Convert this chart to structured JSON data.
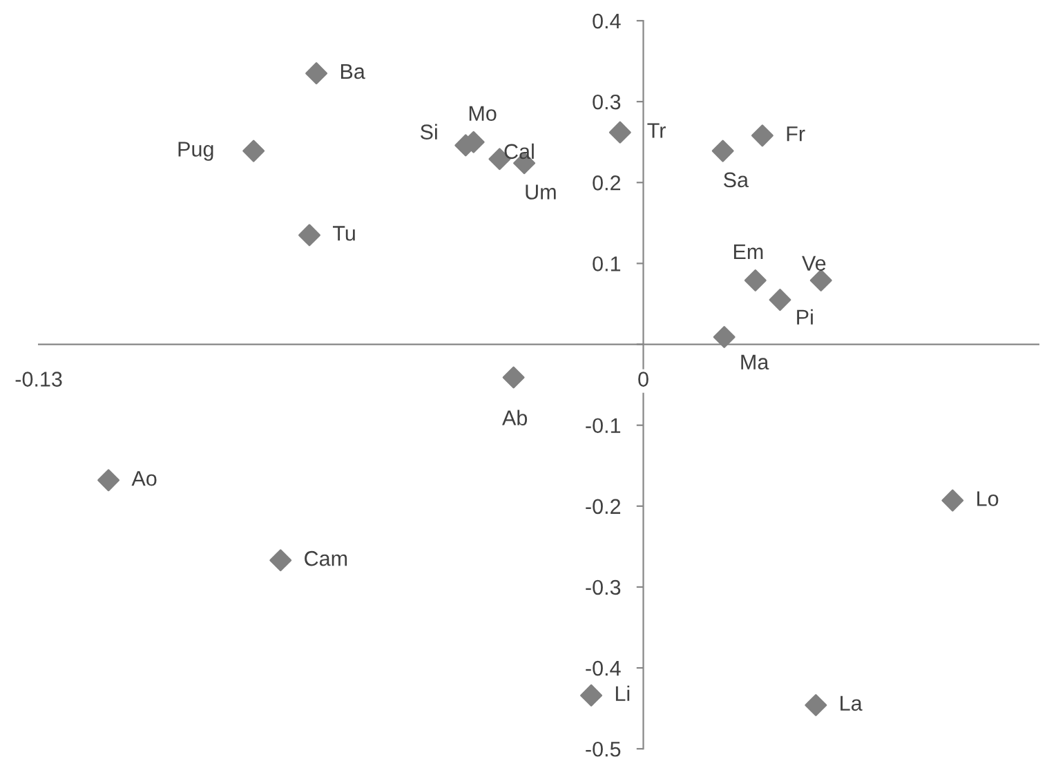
{
  "chart_data": {
    "type": "scatter",
    "series": [
      {
        "color": "#808080",
        "x": [
          -0.0703,
          -0.0838,
          -0.0718,
          -0.0382,
          -0.0365,
          -0.0309,
          -0.0256,
          -0.005,
          0.0171,
          0.0256,
          0.0241,
          0.0382,
          0.0294,
          0.0174,
          -0.0279,
          -0.115,
          -0.078,
          -0.0112,
          0.0371,
          0.0665
        ],
        "values": [
          0.335,
          0.239,
          0.135,
          0.246,
          0.25,
          0.229,
          0.224,
          0.262,
          0.239,
          0.258,
          0.079,
          0.079,
          0.055,
          0.009,
          -0.041,
          -0.168,
          -0.267,
          -0.434,
          -0.446,
          -0.193
        ]
      }
    ],
    "annotations": [
      {
        "text": "Ba",
        "x": -0.0703,
        "y": 0.335
      },
      {
        "text": "Pug",
        "x": -0.0838,
        "y": 0.239
      },
      {
        "text": "Tu",
        "x": -0.0718,
        "y": 0.135
      },
      {
        "text": "Si",
        "x": -0.0382,
        "y": 0.246
      },
      {
        "text": "Mo",
        "x": -0.0365,
        "y": 0.25
      },
      {
        "text": "Cal",
        "x": -0.0309,
        "y": 0.229
      },
      {
        "text": "Um",
        "x": -0.0256,
        "y": 0.224
      },
      {
        "text": "Tr",
        "x": -0.005,
        "y": 0.262
      },
      {
        "text": "Sa",
        "x": 0.0171,
        "y": 0.239
      },
      {
        "text": "Fr",
        "x": 0.0256,
        "y": 0.258
      },
      {
        "text": "Em",
        "x": 0.0241,
        "y": 0.079
      },
      {
        "text": "Ve",
        "x": 0.0382,
        "y": 0.079
      },
      {
        "text": "Pi",
        "x": 0.0294,
        "y": 0.055
      },
      {
        "text": "Ma",
        "x": 0.0174,
        "y": 0.009
      },
      {
        "text": "Ab",
        "x": -0.0279,
        "y": -0.041
      },
      {
        "text": "Ao",
        "x": -0.115,
        "y": -0.168
      },
      {
        "text": "Cam",
        "x": -0.078,
        "y": -0.267
      },
      {
        "text": "Li",
        "x": -0.0112,
        "y": -0.434
      },
      {
        "text": "La",
        "x": 0.0371,
        "y": -0.446
      },
      {
        "text": "Lo",
        "x": 0.0665,
        "y": -0.193
      }
    ],
    "xlim": [
      -0.13,
      0.085
    ],
    "xticks": [
      -0.13,
      0
    ],
    "ylim": [
      -0.5,
      0.4
    ],
    "yticks": [
      0.4,
      0.3,
      0.2,
      0.1,
      {
        "value": 0,
        "label": null
      },
      -0.1,
      -0.2,
      -0.3,
      -0.4,
      -0.5
    ],
    "marker": "diamond"
  }
}
